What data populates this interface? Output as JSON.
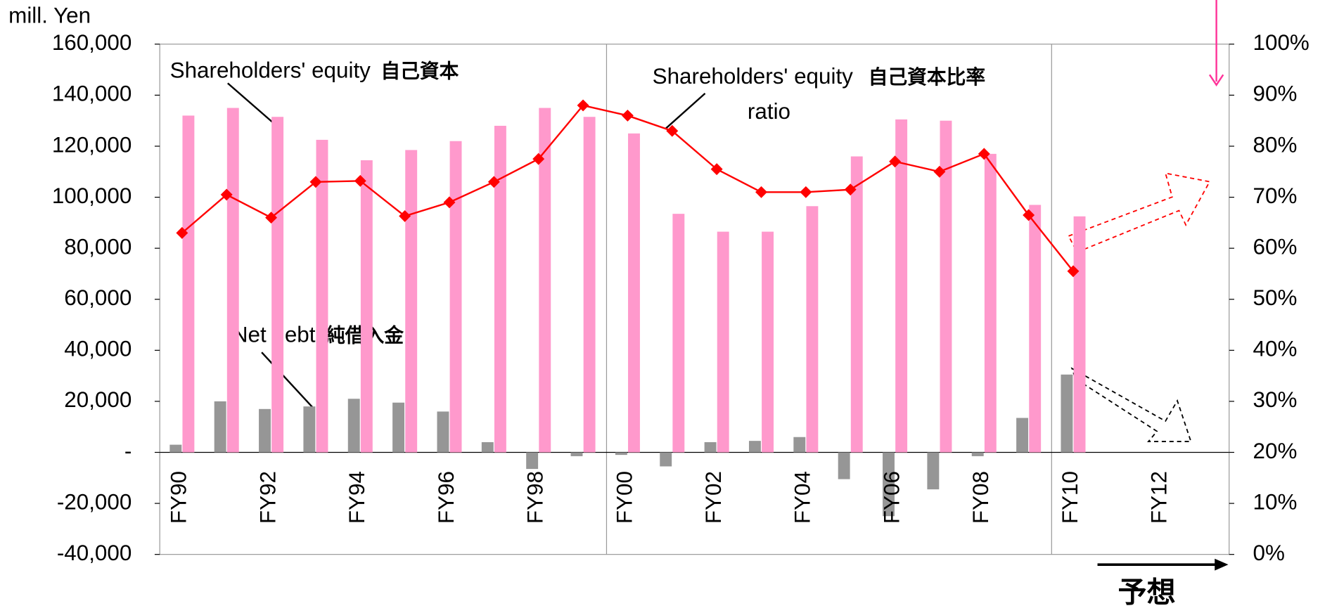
{
  "chart_data": {
    "type": "bar-line",
    "y_label": "mill. Yen",
    "categories": [
      "FY90",
      null,
      "FY92",
      null,
      "FY94",
      null,
      "FY96",
      null,
      "FY98",
      null,
      "FY00",
      null,
      "FY02",
      null,
      "FY04",
      null,
      "FY06",
      null,
      "FY08",
      null,
      "FY10",
      null,
      "FY12",
      null
    ],
    "series": [
      {
        "name": "Net debt",
        "name_jp": "純借入金",
        "type": "bar",
        "color": "#969696",
        "values": [
          3000,
          20000,
          17000,
          18000,
          21000,
          19500,
          16000,
          4000,
          -6500,
          -1500,
          -1000,
          -5500,
          4000,
          4500,
          6000,
          -10500,
          -25000,
          -14500,
          -1500,
          13500,
          30500,
          null,
          null,
          null
        ]
      },
      {
        "name": "Shareholders' equity",
        "name_jp": "自己資本",
        "type": "bar",
        "color": "#ff99cc",
        "values": [
          132000,
          135000,
          131500,
          122500,
          114500,
          118500,
          122000,
          128000,
          135000,
          131500,
          125000,
          93500,
          86500,
          86500,
          96500,
          116000,
          130500,
          130000,
          117000,
          97000,
          92500,
          null,
          null,
          null
        ]
      },
      {
        "name": "Shareholders' equity",
        "name_jp": "自己資本比率",
        "name_2": "ratio",
        "type": "line",
        "axis": "y2",
        "color": "#ff0000",
        "values": [
          63,
          70.5,
          66,
          73,
          73.2,
          66.3,
          69,
          73,
          77.5,
          88,
          86,
          83,
          75.5,
          71,
          71,
          71.5,
          77,
          75,
          78.5,
          66.5,
          55.5,
          null,
          null,
          null
        ]
      }
    ],
    "ylim": [
      -40000,
      160000
    ],
    "yticks": [
      {
        "value": -40000,
        "label": "-40,000"
      },
      {
        "value": -20000,
        "label": "-20,000"
      },
      {
        "value": 0,
        "label": "-"
      },
      {
        "value": 20000,
        "label": "20,000"
      },
      {
        "value": 40000,
        "label": "40,000"
      },
      {
        "value": 60000,
        "label": "60,000"
      },
      {
        "value": 80000,
        "label": "80,000"
      },
      {
        "value": 100000,
        "label": "100,000"
      },
      {
        "value": 120000,
        "label": "120,000"
      },
      {
        "value": 140000,
        "label": "140,000"
      },
      {
        "value": 160000,
        "label": "160,000"
      }
    ],
    "y2lim": [
      0,
      100
    ],
    "y2ticks": [
      {
        "value": 0,
        "label": "0%"
      },
      {
        "value": 10,
        "label": "10%"
      },
      {
        "value": 20,
        "label": "20%"
      },
      {
        "value": 30,
        "label": "30%"
      },
      {
        "value": 40,
        "label": "40%"
      },
      {
        "value": 50,
        "label": "50%"
      },
      {
        "value": 60,
        "label": "60%"
      },
      {
        "value": 70,
        "label": "70%"
      },
      {
        "value": 80,
        "label": "80%"
      },
      {
        "value": 90,
        "label": "90%"
      },
      {
        "value": 100,
        "label": "100%"
      }
    ],
    "forecast_label": "予想"
  }
}
